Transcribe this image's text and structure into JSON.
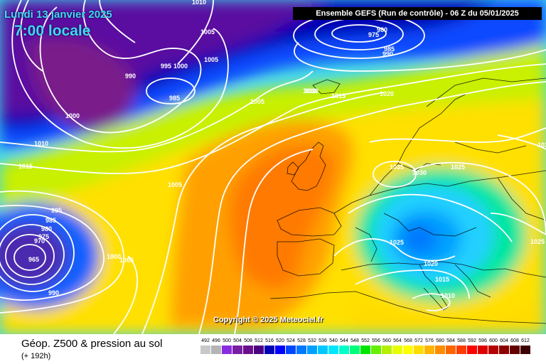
{
  "header": {
    "date": "Lundi 13 janvier 2025",
    "time": "7:00 locale",
    "run": "Ensemble GEFS  (Run de contrôle)  -  06 Z du 05/01/2025"
  },
  "copyright": "Copyright © 2025 Meteociel.fr",
  "footer": {
    "title": "Géop. Z500 & pression au sol",
    "subtitle": "(+ 192h)"
  },
  "pressure_labels": [
    "1010",
    "1005",
    "1005",
    "990",
    "995",
    "1000",
    "985",
    "1005",
    "1000",
    "1010",
    "1015",
    "1010",
    "1015",
    "1005",
    "995",
    "985",
    "980",
    "975",
    "970",
    "965",
    "1000",
    "1005",
    "990",
    "975",
    "980",
    "985",
    "990",
    "1010",
    "1015",
    "1020",
    "1035",
    "1030",
    "1025",
    "1025",
    "1020",
    "1015",
    "1010",
    "1025",
    "1035"
  ],
  "legend": {
    "values": [
      "492",
      "496",
      "500",
      "504",
      "508",
      "512",
      "516",
      "520",
      "524",
      "528",
      "532",
      "536",
      "540",
      "544",
      "548",
      "552",
      "556",
      "560",
      "564",
      "568",
      "572",
      "576",
      "580",
      "584",
      "588",
      "592",
      "596",
      "600",
      "604",
      "608",
      "612"
    ],
    "colors": [
      "#c8c8c8",
      "#b4b4b4",
      "#8a2be2",
      "#7a1fa2",
      "#6b0f8c",
      "#4b0082",
      "#0000b4",
      "#0000ff",
      "#0046ff",
      "#0078ff",
      "#00a0ff",
      "#00c8ff",
      "#00e6ff",
      "#00ffc8",
      "#00ff78",
      "#00e600",
      "#64f000",
      "#b4f000",
      "#e6ff00",
      "#ffff00",
      "#ffdc00",
      "#ffb400",
      "#ff8c00",
      "#ff6400",
      "#ff3c00",
      "#ff0000",
      "#dc0000",
      "#b40000",
      "#8c0000",
      "#640000",
      "#3c0000"
    ]
  }
}
